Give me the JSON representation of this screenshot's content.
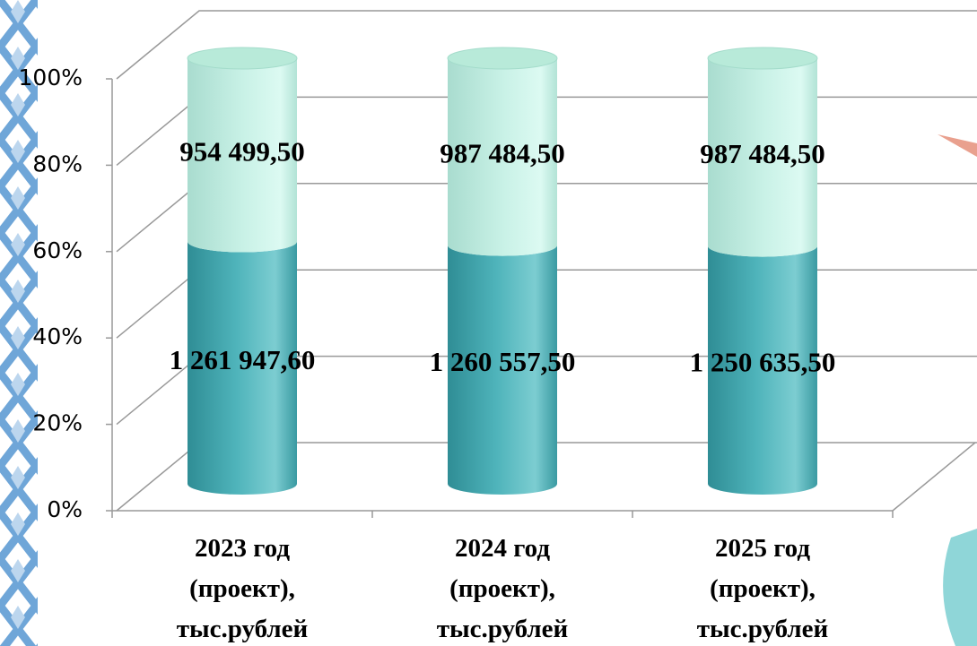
{
  "chart_data": {
    "type": "stacked_percent_cylinder",
    "categories": [
      "2023 год (проект), тыс.рублей",
      "2024 год (проект), тыс.рублей",
      "2025 год (проект), тыс.рублей"
    ],
    "series": [
      {
        "color": "#4fb4bb",
        "values": [
          1261947.6,
          1260557.5,
          1250635.5
        ],
        "value_labels": [
          "1 261 947,60",
          "1 260 557,50",
          "1 250 635,50"
        ]
      },
      {
        "color": "#c8f1e6",
        "values": [
          954499.5,
          987484.5,
          987484.5
        ],
        "value_labels": [
          "954 499,50",
          "987 484,50",
          "987 484,50"
        ]
      }
    ],
    "ylim": [
      0,
      100
    ],
    "yticks": [
      {
        "value": 0,
        "label": "0%"
      },
      {
        "value": 20,
        "label": "20%"
      },
      {
        "value": 40,
        "label": "40%"
      },
      {
        "value": 60,
        "label": "60%"
      },
      {
        "value": 80,
        "label": "80%"
      },
      {
        "value": 100,
        "label": "100%"
      }
    ],
    "grid": true
  }
}
